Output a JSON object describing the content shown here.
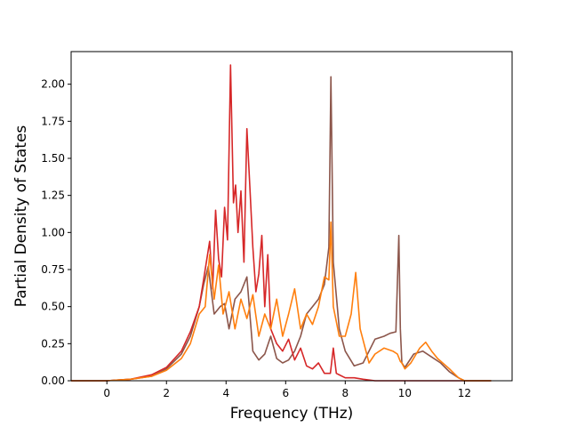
{
  "chart_data": {
    "type": "line",
    "title": "",
    "xlabel": "Frequency (THz)",
    "ylabel": "Partial Density of States",
    "xlim": [
      -1.2,
      13.6
    ],
    "ylim": [
      0,
      2.22
    ],
    "xticks": [
      0,
      2,
      4,
      6,
      8,
      10,
      12
    ],
    "yticks": [
      0.0,
      0.25,
      0.5,
      0.75,
      1.0,
      1.25,
      1.5,
      1.75,
      2.0
    ],
    "ytick_labels": [
      "0.00",
      "0.25",
      "0.50",
      "0.75",
      "1.00",
      "1.25",
      "1.50",
      "1.75",
      "2.00"
    ],
    "grid": false,
    "legend": "none",
    "series": [
      {
        "color": "#8c564b",
        "x": [
          -1.2,
          0.0,
          0.8,
          1.5,
          2.0,
          2.5,
          2.8,
          3.1,
          3.25,
          3.4,
          3.6,
          3.8,
          3.95,
          4.1,
          4.3,
          4.5,
          4.7,
          4.9,
          5.1,
          5.3,
          5.5,
          5.7,
          5.9,
          6.1,
          6.3,
          6.5,
          6.7,
          6.9,
          7.1,
          7.3,
          7.45,
          7.52,
          7.6,
          7.8,
          8.0,
          8.3,
          8.6,
          9.0,
          9.3,
          9.5,
          9.7,
          9.8,
          9.85,
          9.9,
          10.0,
          10.3,
          10.6,
          10.9,
          11.2,
          11.5,
          11.8,
          12.0,
          12.9
        ],
        "y": [
          0.0,
          0.0,
          0.01,
          0.03,
          0.08,
          0.18,
          0.3,
          0.5,
          0.65,
          0.77,
          0.45,
          0.5,
          0.52,
          0.35,
          0.55,
          0.6,
          0.7,
          0.2,
          0.14,
          0.18,
          0.3,
          0.15,
          0.12,
          0.14,
          0.2,
          0.3,
          0.45,
          0.5,
          0.55,
          0.65,
          0.9,
          2.05,
          0.8,
          0.35,
          0.2,
          0.1,
          0.12,
          0.28,
          0.3,
          0.32,
          0.33,
          0.98,
          0.35,
          0.12,
          0.09,
          0.18,
          0.2,
          0.16,
          0.12,
          0.06,
          0.02,
          0.0,
          0.0
        ]
      },
      {
        "color": "#d62728",
        "x": [
          -1.2,
          0.0,
          0.8,
          1.5,
          2.0,
          2.5,
          2.8,
          3.1,
          3.3,
          3.45,
          3.55,
          3.65,
          3.75,
          3.85,
          3.95,
          4.05,
          4.15,
          4.25,
          4.32,
          4.4,
          4.5,
          4.6,
          4.7,
          4.8,
          4.9,
          5.0,
          5.1,
          5.2,
          5.3,
          5.4,
          5.5,
          5.7,
          5.9,
          6.1,
          6.3,
          6.5,
          6.7,
          6.9,
          7.1,
          7.3,
          7.5,
          7.6,
          7.7,
          8.0,
          8.3,
          8.6,
          9.0,
          10.0,
          12.9
        ],
        "y": [
          0.0,
          0.0,
          0.01,
          0.04,
          0.09,
          0.2,
          0.33,
          0.5,
          0.75,
          0.94,
          0.62,
          1.15,
          0.82,
          0.7,
          1.17,
          0.95,
          2.13,
          1.2,
          1.32,
          1.0,
          1.28,
          0.8,
          1.7,
          1.3,
          0.9,
          0.6,
          0.72,
          0.98,
          0.5,
          0.85,
          0.35,
          0.25,
          0.2,
          0.28,
          0.14,
          0.22,
          0.1,
          0.08,
          0.12,
          0.05,
          0.05,
          0.22,
          0.05,
          0.02,
          0.02,
          0.01,
          0.0,
          0.0,
          0.0
        ]
      },
      {
        "color": "#ff7f0e",
        "x": [
          -1.2,
          0.0,
          0.8,
          1.5,
          2.0,
          2.5,
          2.8,
          3.1,
          3.3,
          3.45,
          3.6,
          3.75,
          3.9,
          4.1,
          4.3,
          4.5,
          4.7,
          4.9,
          5.1,
          5.3,
          5.5,
          5.7,
          5.9,
          6.1,
          6.3,
          6.5,
          6.7,
          6.9,
          7.1,
          7.3,
          7.45,
          7.52,
          7.6,
          7.8,
          8.0,
          8.2,
          8.35,
          8.5,
          8.8,
          9.0,
          9.3,
          9.6,
          9.75,
          9.85,
          9.9,
          10.0,
          10.2,
          10.5,
          10.7,
          10.9,
          11.1,
          11.5,
          11.8,
          12.0,
          12.9
        ],
        "y": [
          0.0,
          0.0,
          0.01,
          0.03,
          0.07,
          0.15,
          0.25,
          0.45,
          0.5,
          0.85,
          0.55,
          0.78,
          0.45,
          0.6,
          0.35,
          0.55,
          0.42,
          0.58,
          0.3,
          0.45,
          0.35,
          0.55,
          0.3,
          0.45,
          0.62,
          0.35,
          0.45,
          0.38,
          0.5,
          0.7,
          0.68,
          1.07,
          0.5,
          0.3,
          0.3,
          0.45,
          0.73,
          0.35,
          0.12,
          0.18,
          0.22,
          0.2,
          0.18,
          0.13,
          0.12,
          0.08,
          0.12,
          0.22,
          0.26,
          0.2,
          0.15,
          0.08,
          0.02,
          0.0,
          0.0
        ]
      }
    ]
  }
}
